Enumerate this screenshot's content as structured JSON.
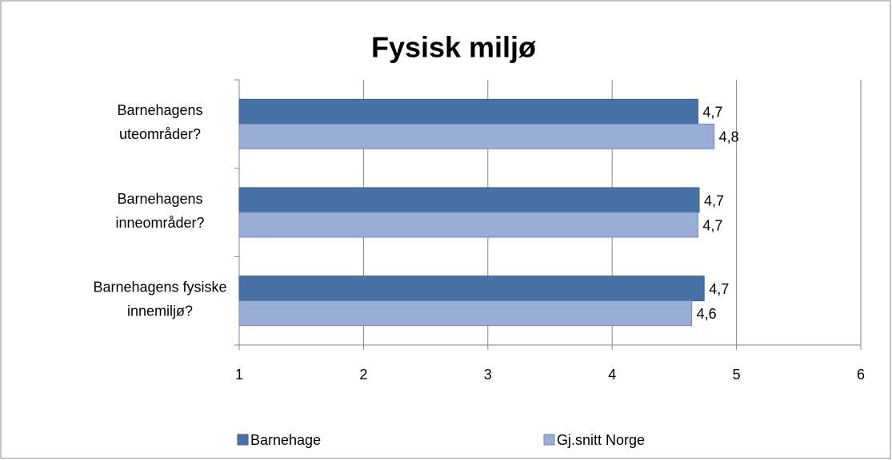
{
  "chart_data": {
    "type": "bar",
    "orientation": "horizontal",
    "title": "Fysisk miljø",
    "categories": [
      [
        "Barnehagens",
        "uteområder?"
      ],
      [
        "Barnehagens",
        "inneområder?"
      ],
      [
        "Barnehagens fysiske",
        "innemiljø?"
      ]
    ],
    "series": [
      {
        "name": "Barnehage",
        "color": "#4672a8",
        "values": [
          4.69,
          4.7,
          4.74
        ],
        "value_labels": [
          "4,7",
          "4,7",
          "4,7"
        ]
      },
      {
        "name": "Gj.snitt Norge",
        "color": "#98aed6",
        "values": [
          4.82,
          4.69,
          4.64
        ],
        "value_labels": [
          "4,8",
          "4,7",
          "4,6"
        ]
      }
    ],
    "xlim": [
      1,
      6
    ],
    "xticks": [
      1,
      2,
      3,
      4,
      5,
      6
    ],
    "grid": true,
    "legend": "bottom"
  }
}
